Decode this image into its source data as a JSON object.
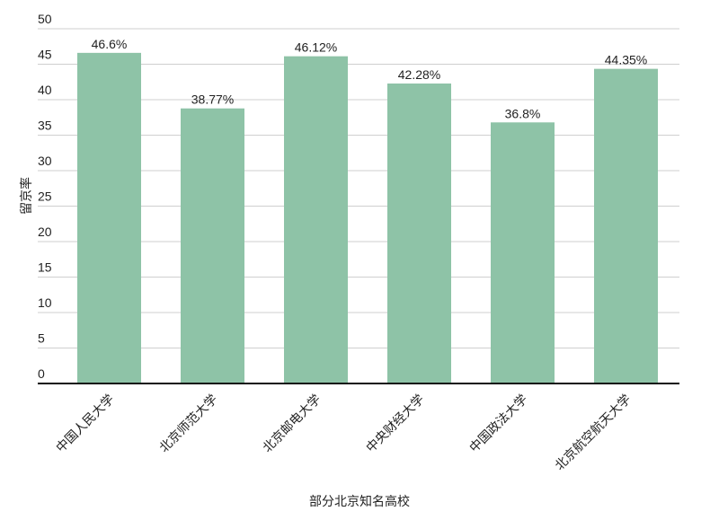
{
  "chart_data": {
    "type": "bar",
    "x_label": "部分北京知名高校",
    "y_label": "留京率",
    "categories": [
      "中国人民大学",
      "北京师范大学",
      "北京邮电大学",
      "中央财经大学",
      "中国政法大学",
      "北京航空航天大学"
    ],
    "values": [
      46.6,
      38.77,
      46.12,
      42.28,
      36.8,
      44.35
    ],
    "value_labels": [
      "46.6%",
      "38.77%",
      "46.12%",
      "42.28%",
      "36.8%",
      "44.35%"
    ],
    "color": "#8ec3a7",
    "ylim": [
      0,
      50
    ],
    "yticks": [
      0,
      5,
      10,
      15,
      20,
      25,
      30,
      35,
      40,
      45,
      50
    ],
    "grid": true
  }
}
